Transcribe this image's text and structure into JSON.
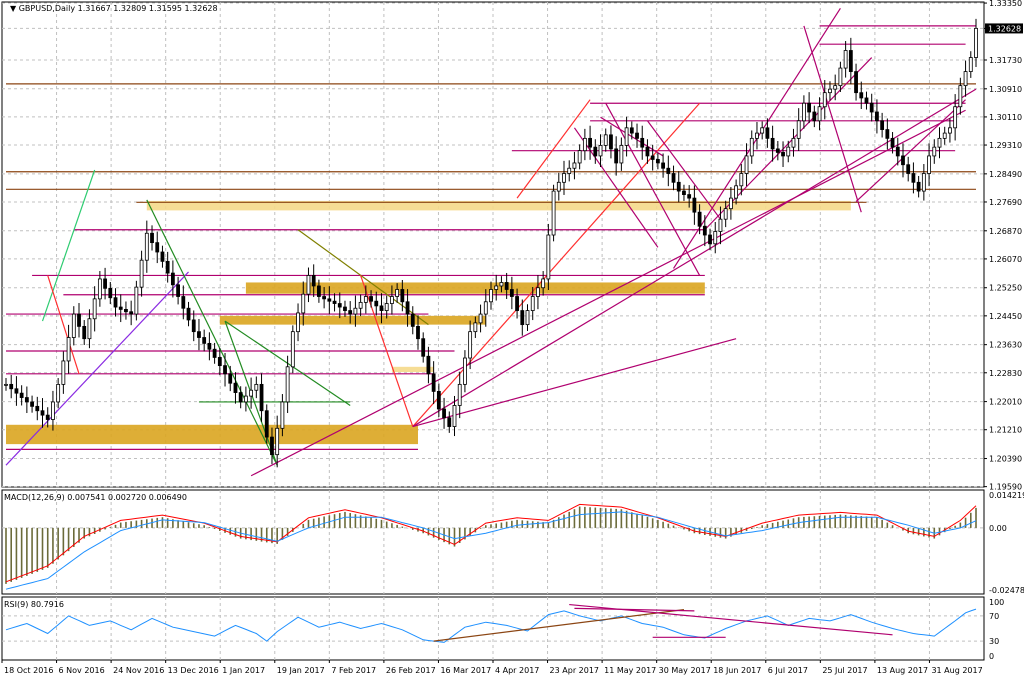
{
  "chart_data": [
    {
      "type": "candlestick",
      "title": "GBPUSD,Daily  1.31667 1.32809 1.31595 1.32628",
      "ylim": [
        1.1958,
        1.3338
      ],
      "last_price": "1.32628",
      "y_ticks": [
        "1.33350",
        "1.32628",
        "1.31730",
        "1.30910",
        "1.30110",
        "1.29310",
        "1.28490",
        "1.27690",
        "1.26870",
        "1.26070",
        "1.25250",
        "1.24450",
        "1.23630",
        "1.22830",
        "1.22010",
        "1.21210",
        "1.20390",
        "1.19590"
      ],
      "x_ticks": [
        "18 Oct 2016",
        "6 Nov 2016",
        "24 Nov 2016",
        "13 Dec 2016",
        "1 Jan 2017",
        "19 Jan 2017",
        "7 Feb 2017",
        "26 Feb 2017",
        "16 Mar 2017",
        "4 Apr 2017",
        "23 Apr 2017",
        "11 May 2017",
        "30 May 2017",
        "18 Jun 2017",
        "6 Jul 2017",
        "25 Jul 2017",
        "13 Aug 2017",
        "31 Aug 2017"
      ],
      "close_path": [
        [
          0,
          1.225
        ],
        [
          4,
          1.22
        ],
        [
          8,
          1.215
        ],
        [
          10,
          1.225
        ],
        [
          13,
          1.245
        ],
        [
          15,
          1.238
        ],
        [
          18,
          1.255
        ],
        [
          21,
          1.247
        ],
        [
          24,
          1.245
        ],
        [
          27,
          1.268
        ],
        [
          30,
          1.26
        ],
        [
          33,
          1.25
        ],
        [
          36,
          1.24
        ],
        [
          39,
          1.235
        ],
        [
          42,
          1.228
        ],
        [
          45,
          1.22
        ],
        [
          48,
          1.225
        ],
        [
          50,
          1.21
        ],
        [
          51,
          1.205
        ],
        [
          53,
          1.22
        ],
        [
          55,
          1.24
        ],
        [
          58,
          1.256
        ],
        [
          60,
          1.25
        ],
        [
          63,
          1.248
        ],
        [
          66,
          1.245
        ],
        [
          69,
          1.25
        ],
        [
          72,
          1.246
        ],
        [
          75,
          1.252
        ],
        [
          77,
          1.245
        ],
        [
          79,
          1.238
        ],
        [
          81,
          1.228
        ],
        [
          83,
          1.218
        ],
        [
          85,
          1.213
        ],
        [
          87,
          1.225
        ],
        [
          89,
          1.24
        ],
        [
          91,
          1.245
        ],
        [
          93,
          1.252
        ],
        [
          95,
          1.254
        ],
        [
          97,
          1.25
        ],
        [
          99,
          1.242
        ],
        [
          101,
          1.25
        ],
        [
          103,
          1.255
        ],
        [
          105,
          1.28
        ],
        [
          107,
          1.285
        ],
        [
          109,
          1.288
        ],
        [
          111,
          1.295
        ],
        [
          113,
          1.29
        ],
        [
          115,
          1.296
        ],
        [
          117,
          1.288
        ],
        [
          119,
          1.298
        ],
        [
          121,
          1.295
        ],
        [
          123,
          1.29
        ],
        [
          125,
          1.288
        ],
        [
          127,
          1.285
        ],
        [
          129,
          1.28
        ],
        [
          131,
          1.278
        ],
        [
          133,
          1.27
        ],
        [
          135,
          1.265
        ],
        [
          137,
          1.272
        ],
        [
          139,
          1.278
        ],
        [
          141,
          1.285
        ],
        [
          143,
          1.295
        ],
        [
          145,
          1.298
        ],
        [
          147,
          1.292
        ],
        [
          149,
          1.29
        ],
        [
          151,
          1.295
        ],
        [
          153,
          1.305
        ],
        [
          155,
          1.3
        ],
        [
          157,
          1.308
        ],
        [
          159,
          1.31
        ],
        [
          161,
          1.32
        ],
        [
          163,
          1.308
        ],
        [
          165,
          1.305
        ],
        [
          167,
          1.3
        ],
        [
          169,
          1.295
        ],
        [
          171,
          1.29
        ],
        [
          173,
          1.285
        ],
        [
          175,
          1.28
        ],
        [
          177,
          1.29
        ],
        [
          179,
          1.295
        ],
        [
          181,
          1.298
        ],
        [
          183,
          1.31
        ],
        [
          185,
          1.318
        ],
        [
          186,
          1.3263
        ]
      ],
      "marks": {
        "trend_lines_magenta": 14,
        "trend_lines_red": 4,
        "trend_lines_green": 4,
        "trend_lines_purple": 2,
        "support_resistance_zones": 4
      }
    },
    {
      "type": "histogram",
      "title": "MACD(12,26,9) 0.007541 0.002720 0.006490",
      "ylim": [
        -0.02479,
        0.01421
      ],
      "y_ticks": [
        "0.014219",
        "0.00",
        "-0.024787"
      ],
      "macd_path": [
        [
          0,
          -0.021
        ],
        [
          8,
          -0.015
        ],
        [
          15,
          -0.004
        ],
        [
          22,
          0.002
        ],
        [
          30,
          0.004
        ],
        [
          38,
          0.001
        ],
        [
          45,
          -0.004
        ],
        [
          52,
          -0.006
        ],
        [
          58,
          0.003
        ],
        [
          65,
          0.006
        ],
        [
          72,
          0.003
        ],
        [
          80,
          -0.002
        ],
        [
          86,
          -0.007
        ],
        [
          92,
          0.001
        ],
        [
          98,
          0.003
        ],
        [
          104,
          0.002
        ],
        [
          110,
          0.008
        ],
        [
          118,
          0.007
        ],
        [
          125,
          0.003
        ],
        [
          132,
          -0.002
        ],
        [
          138,
          -0.004
        ],
        [
          145,
          0.001
        ],
        [
          152,
          0.004
        ],
        [
          160,
          0.005
        ],
        [
          167,
          0.004
        ],
        [
          173,
          -0.002
        ],
        [
          178,
          -0.004
        ],
        [
          183,
          0.002
        ],
        [
          186,
          0.0075
        ]
      ],
      "signal_path": [
        [
          0,
          -0.023
        ],
        [
          8,
          -0.019
        ],
        [
          15,
          -0.009
        ],
        [
          22,
          -0.001
        ],
        [
          30,
          0.003
        ],
        [
          38,
          0.002
        ],
        [
          45,
          -0.002
        ],
        [
          52,
          -0.005
        ],
        [
          58,
          0.0
        ],
        [
          65,
          0.004
        ],
        [
          72,
          0.004
        ],
        [
          80,
          0.0
        ],
        [
          86,
          -0.004
        ],
        [
          92,
          -0.002
        ],
        [
          98,
          0.001
        ],
        [
          104,
          0.002
        ],
        [
          110,
          0.005
        ],
        [
          118,
          0.006
        ],
        [
          125,
          0.004
        ],
        [
          132,
          0.0
        ],
        [
          138,
          -0.003
        ],
        [
          145,
          -0.001
        ],
        [
          152,
          0.002
        ],
        [
          160,
          0.004
        ],
        [
          167,
          0.004
        ],
        [
          173,
          0.001
        ],
        [
          178,
          -0.002
        ],
        [
          183,
          0.0
        ],
        [
          186,
          0.0027
        ]
      ]
    },
    {
      "type": "line",
      "title": "RSI(9) 80.7916",
      "ylim": [
        0,
        100
      ],
      "y_ticks": [
        "100",
        "70",
        "30",
        "0"
      ],
      "rsi_path": [
        [
          0,
          48
        ],
        [
          4,
          58
        ],
        [
          8,
          42
        ],
        [
          12,
          70
        ],
        [
          16,
          55
        ],
        [
          20,
          62
        ],
        [
          24,
          48
        ],
        [
          28,
          66
        ],
        [
          32,
          52
        ],
        [
          36,
          45
        ],
        [
          40,
          38
        ],
        [
          44,
          55
        ],
        [
          48,
          42
        ],
        [
          50,
          30
        ],
        [
          52,
          45
        ],
        [
          56,
          68
        ],
        [
          60,
          52
        ],
        [
          64,
          60
        ],
        [
          68,
          50
        ],
        [
          72,
          58
        ],
        [
          76,
          48
        ],
        [
          80,
          32
        ],
        [
          84,
          28
        ],
        [
          88,
          52
        ],
        [
          92,
          60
        ],
        [
          96,
          55
        ],
        [
          100,
          46
        ],
        [
          104,
          72
        ],
        [
          107,
          78
        ],
        [
          110,
          70
        ],
        [
          114,
          62
        ],
        [
          118,
          70
        ],
        [
          122,
          58
        ],
        [
          126,
          52
        ],
        [
          130,
          40
        ],
        [
          134,
          35
        ],
        [
          138,
          50
        ],
        [
          142,
          62
        ],
        [
          146,
          70
        ],
        [
          150,
          55
        ],
        [
          154,
          66
        ],
        [
          158,
          62
        ],
        [
          162,
          72
        ],
        [
          166,
          60
        ],
        [
          170,
          50
        ],
        [
          174,
          42
        ],
        [
          178,
          38
        ],
        [
          182,
          62
        ],
        [
          184,
          75
        ],
        [
          186,
          80.79
        ]
      ]
    }
  ]
}
